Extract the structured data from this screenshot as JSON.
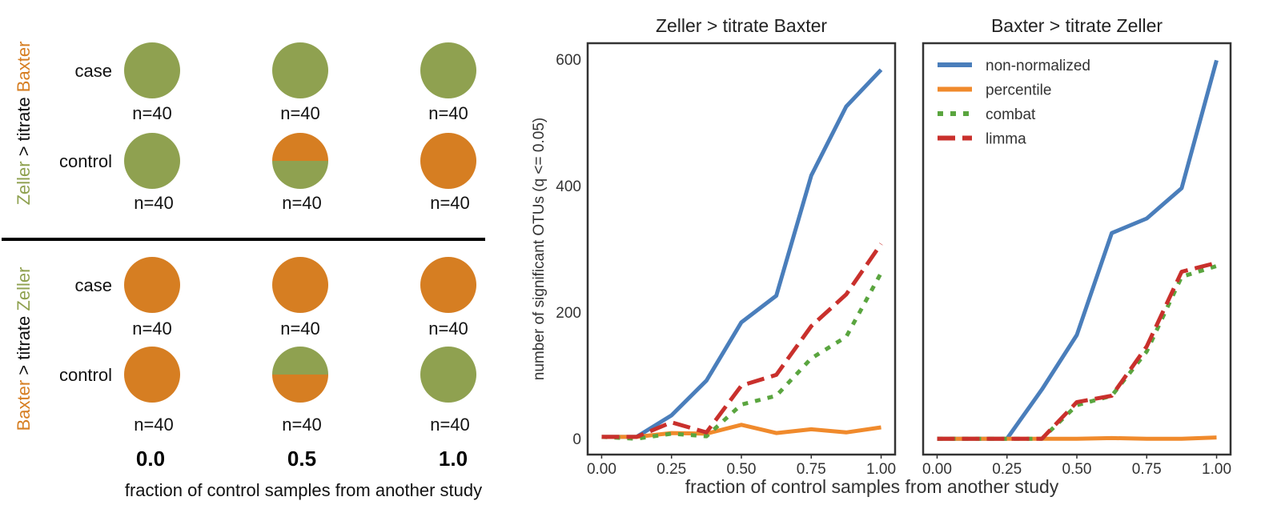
{
  "colors": {
    "zeller": "#8fa150",
    "baxter": "#d67e22",
    "non_normalized": "#4a7ebb",
    "percentile": "#f08a2c",
    "combat": "#5aa53f",
    "limma": "#c9302c",
    "frame": "#333333"
  },
  "schematic": {
    "row_groups": [
      {
        "title_parts": [
          "Zeller",
          " > titrate ",
          "Baxter"
        ],
        "title_colors": [
          "zeller",
          "text",
          "baxter"
        ],
        "rows": [
          {
            "label": "case",
            "circles": [
              {
                "fraction_other": 0.0,
                "n": "n=40"
              },
              {
                "fraction_other": 0.0,
                "n": "n=40"
              },
              {
                "fraction_other": 0.0,
                "n": "n=40"
              }
            ]
          },
          {
            "label": "control",
            "circles": [
              {
                "fraction_other": 0.0,
                "n": "n=40"
              },
              {
                "fraction_other": 0.5,
                "n": "n=40"
              },
              {
                "fraction_other": 1.0,
                "n": "n=40"
              }
            ]
          }
        ]
      },
      {
        "title_parts": [
          "Baxter",
          " > titrate ",
          "Zeller"
        ],
        "title_colors": [
          "baxter",
          "text",
          "zeller"
        ],
        "rows": [
          {
            "label": "case",
            "circles": [
              {
                "fraction_other": 0.0,
                "n": "n=40"
              },
              {
                "fraction_other": 0.0,
                "n": "n=40"
              },
              {
                "fraction_other": 0.0,
                "n": "n=40"
              }
            ]
          },
          {
            "label": "control",
            "circles": [
              {
                "fraction_other": 0.0,
                "n": "n=40"
              },
              {
                "fraction_other": 0.5,
                "n": "n=40"
              },
              {
                "fraction_other": 1.0,
                "n": "n=40"
              }
            ]
          }
        ]
      }
    ],
    "column_labels": [
      "0.0",
      "0.5",
      "1.0"
    ],
    "xlabel": "fraction of control samples from another study"
  },
  "chart_data": [
    {
      "type": "line",
      "title": "Zeller > titrate Baxter",
      "ylabel": "number of significant OTUs (q <= 0.05)",
      "xlim": [
        -0.05,
        1.05
      ],
      "ylim": [
        -25,
        625
      ],
      "xticks": [
        "0.00",
        "0.25",
        "0.50",
        "0.75",
        "1.00"
      ],
      "yticks": [
        "0",
        "200",
        "400",
        "600"
      ],
      "x": [
        0,
        0.125,
        0.25,
        0.375,
        0.5,
        0.625,
        0.75,
        0.875,
        1.0
      ],
      "series": [
        {
          "name": "non-normalized",
          "values": [
            3,
            3,
            37,
            92,
            184,
            226,
            416,
            525,
            583
          ]
        },
        {
          "name": "percentile",
          "values": [
            3,
            3,
            9,
            8,
            22,
            9,
            15,
            10,
            18
          ]
        },
        {
          "name": "combat",
          "values": [
            3,
            0,
            8,
            4,
            54,
            68,
            127,
            161,
            262
          ]
        },
        {
          "name": "limma",
          "values": [
            3,
            3,
            26,
            10,
            84,
            101,
            178,
            228,
            308
          ]
        }
      ]
    },
    {
      "type": "line",
      "title": "Baxter > titrate Zeller",
      "xlim": [
        -0.05,
        1.05
      ],
      "ylim": [
        -25,
        625
      ],
      "xticks": [
        "0.00",
        "0.25",
        "0.50",
        "0.75",
        "1.00"
      ],
      "x": [
        0,
        0.125,
        0.25,
        0.375,
        0.5,
        0.625,
        0.75,
        0.875,
        1.0
      ],
      "series": [
        {
          "name": "non-normalized",
          "values": [
            0,
            0,
            0,
            78,
            164,
            325,
            348,
            396,
            598
          ]
        },
        {
          "name": "percentile",
          "values": [
            0,
            0,
            0,
            0,
            0,
            1,
            0,
            0,
            2
          ]
        },
        {
          "name": "combat",
          "values": [
            0,
            0,
            0,
            0,
            53,
            68,
            138,
            256,
            273
          ]
        },
        {
          "name": "limma",
          "values": [
            0,
            0,
            0,
            0,
            58,
            68,
            146,
            264,
            278
          ]
        }
      ],
      "legend": {
        "placement": "top-left",
        "entries": [
          "non-normalized",
          "percentile",
          "combat",
          "limma"
        ]
      }
    }
  ],
  "shared_xlabel": "fraction of control samples from another study"
}
